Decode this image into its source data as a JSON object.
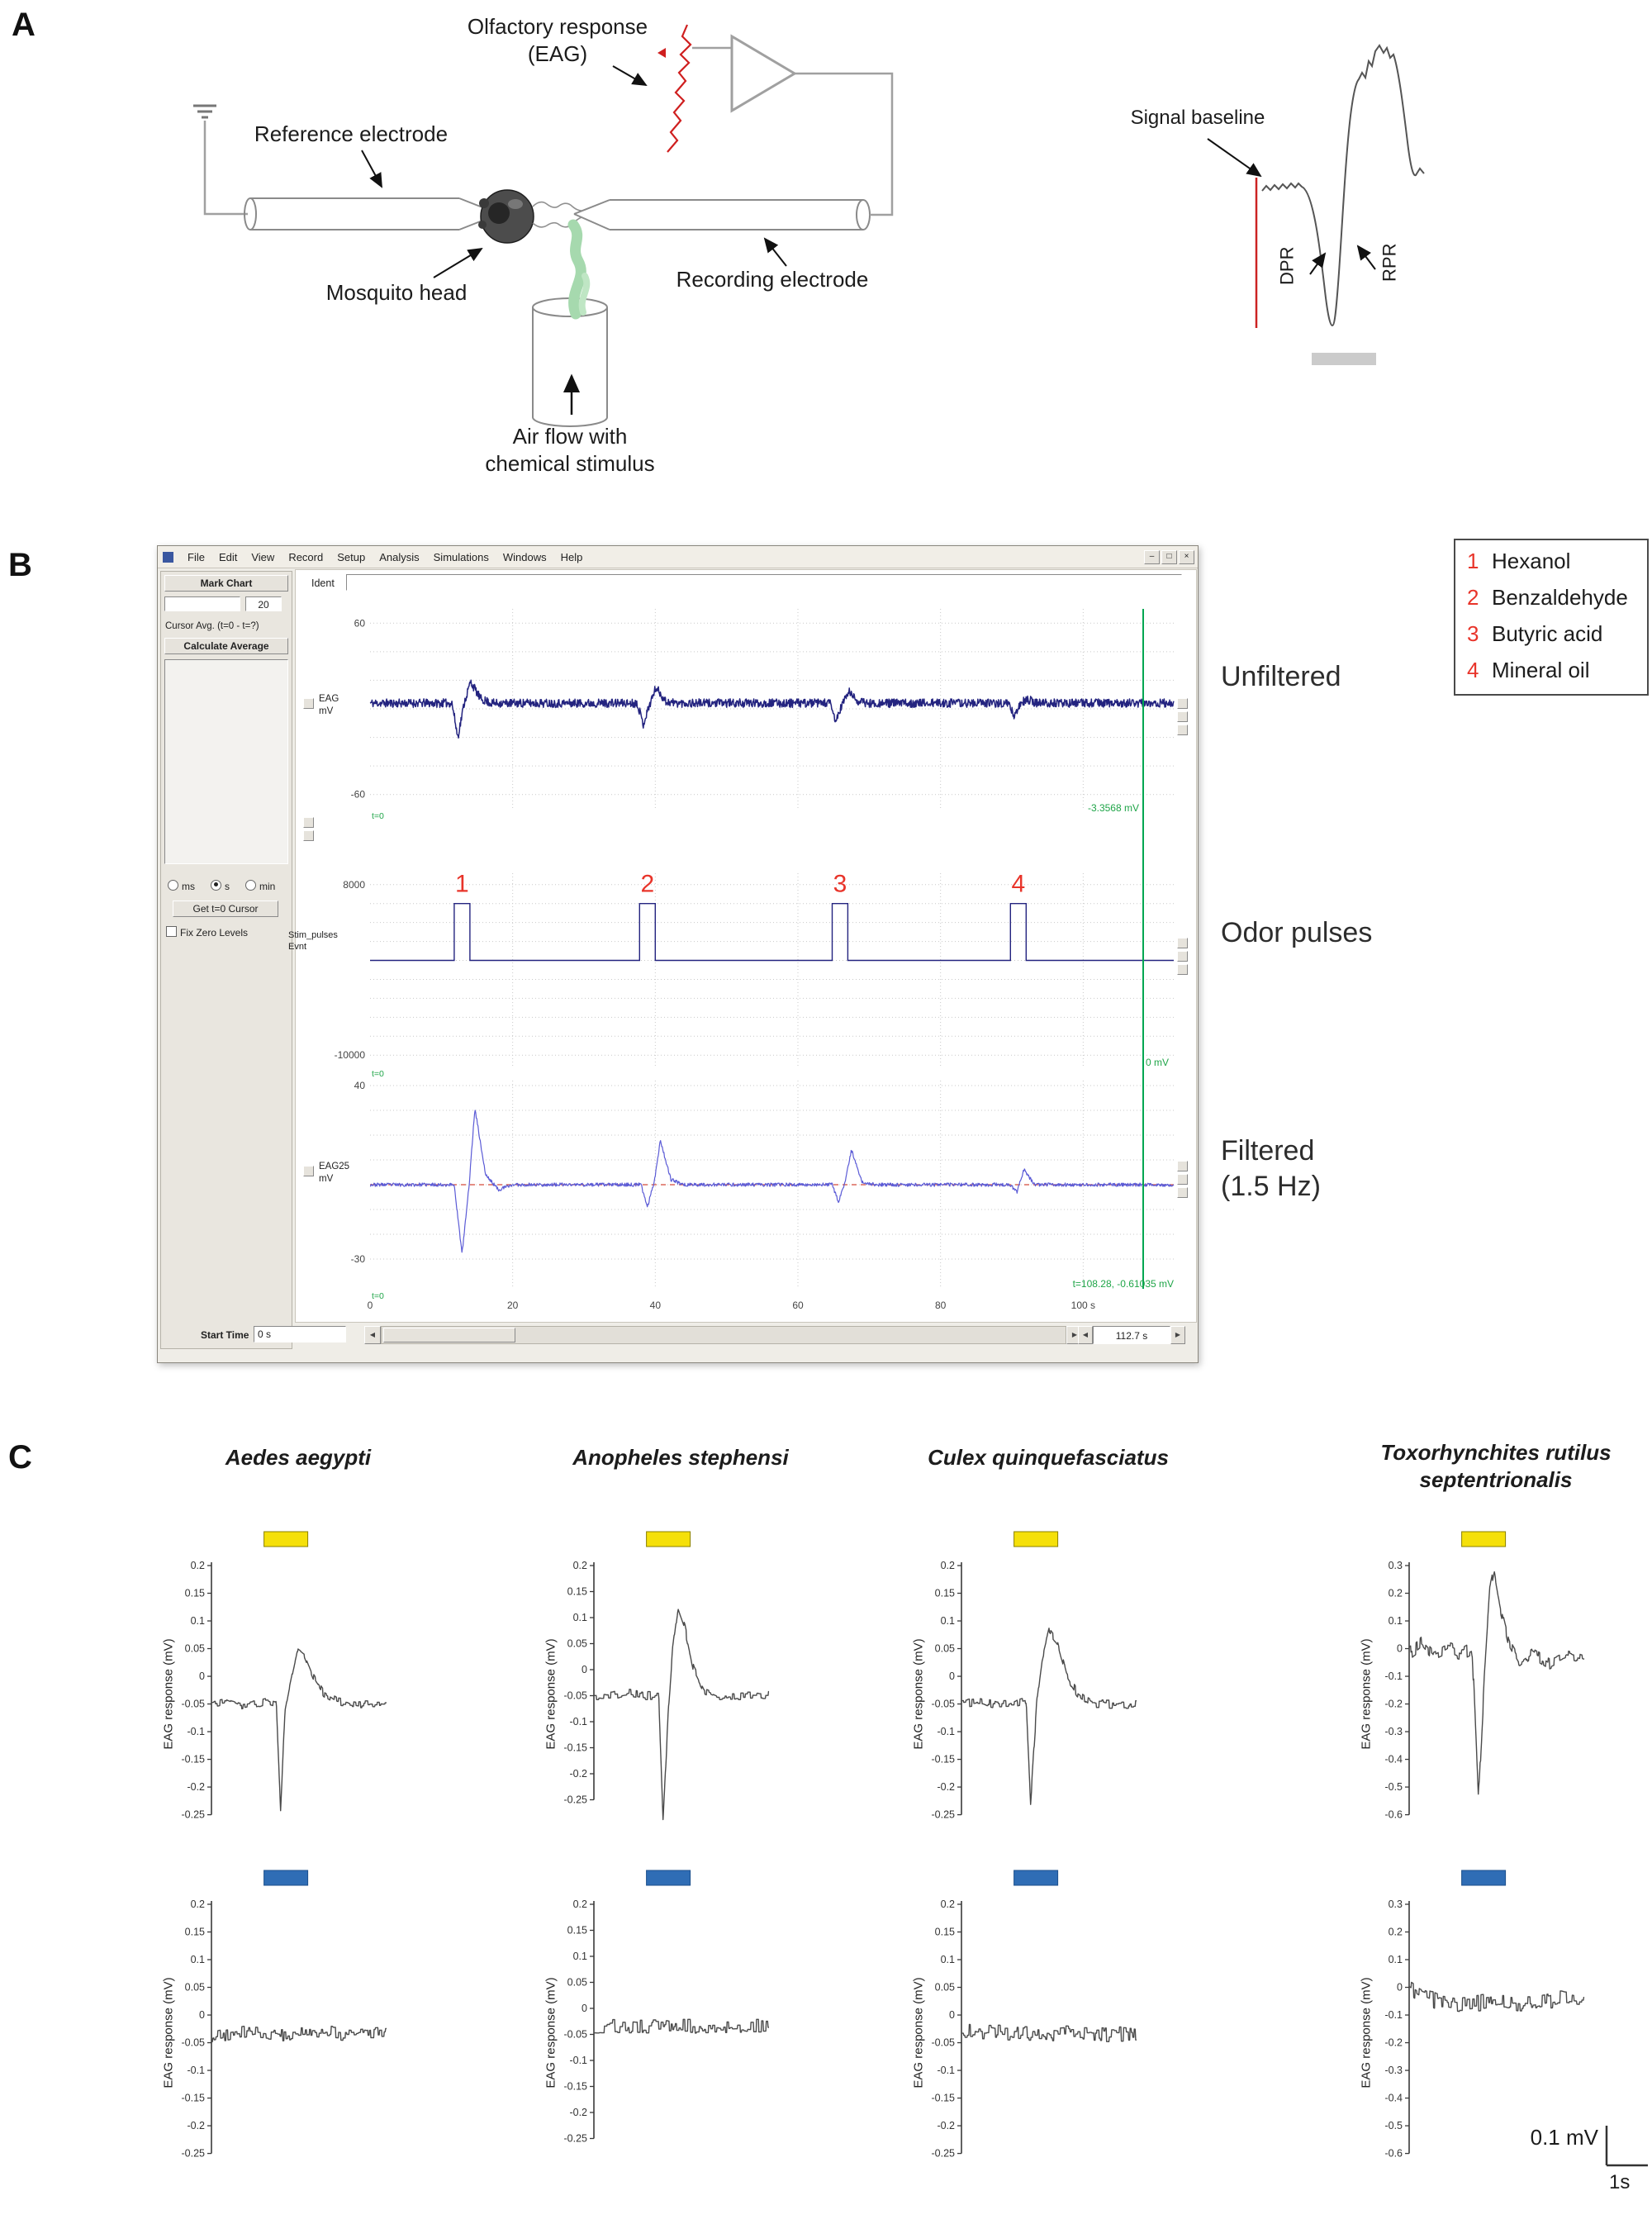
{
  "figure": {
    "panel_a_label": "A",
    "panel_b_label": "B",
    "panel_c_label": "C"
  },
  "panelA": {
    "olfactory_response": "Olfactory response\n(EAG)",
    "reference_electrode": "Reference electrode",
    "mosquito_head": "Mosquito head",
    "recording_electrode": "Recording electrode",
    "air_flow": "Air flow with\nchemical stimulus",
    "signal_baseline": "Signal baseline",
    "dpr": "DPR",
    "rpr": "RPR"
  },
  "panelB": {
    "window": {
      "menu": [
        "File",
        "Edit",
        "View",
        "Record",
        "Setup",
        "Analysis",
        "Simulations",
        "Windows",
        "Help"
      ],
      "window_buttons": {
        "minimize": "–",
        "restore": "□",
        "close": "×"
      },
      "sidebar": {
        "mark_chart": "Mark Chart",
        "mark_value": "20",
        "cursor_avg": "Cursor Avg. (t=0 - t=?)",
        "calculate_average": "Calculate Average",
        "unit_ms": "ms",
        "unit_s": "s",
        "unit_min": "min",
        "get_cursor": "Get t=0 Cursor",
        "fix_zero": "Fix Zero Levels"
      },
      "ident_label": "Ident",
      "channels": {
        "ch1": "EAG\nmV",
        "ch2": "Stim_pulses\nEvnt",
        "ch3": "EAG25\nmV"
      },
      "cursor": {
        "readout1": "-3.3568 mV",
        "readout2": "0 mV",
        "readout3": "t=108.28, -0.61035 mV",
        "t": 108.28
      },
      "start_time_label": "Start Time",
      "start_time_value": "0 s",
      "window_length": "112.7 s",
      "scroll_left": "◀",
      "scroll_right": "▶"
    },
    "annotations": {
      "unfiltered": "Unfiltered",
      "odor_pulses": "Odor pulses",
      "filtered": "Filtered\n(1.5 Hz)"
    },
    "legend": [
      {
        "num": "1",
        "name": "Hexanol"
      },
      {
        "num": "2",
        "name": "Benzaldehyde"
      },
      {
        "num": "3",
        "name": "Butyric acid"
      },
      {
        "num": "4",
        "name": "Mineral oil"
      }
    ]
  },
  "panelC": {
    "species": [
      "Aedes aegypti",
      "Anopheles stephensi",
      "Culex quinquefasciatus",
      "Toxorhynchites rutilus\nseptentrionalis"
    ],
    "scale_voltage": "0.1 mV",
    "scale_time": "1s"
  },
  "chart_data": [
    {
      "id": "b-unfiltered",
      "type": "line",
      "title": "Unfiltered EAG (mV)",
      "xlim": [
        0,
        112.7
      ],
      "ylim": [
        -70,
        70
      ],
      "grid_y": [
        -60,
        -40,
        -20,
        0,
        20,
        40,
        60
      ],
      "grid_x": [
        20,
        40,
        60,
        80,
        100
      ],
      "ytick_labels": [
        {
          "v": 60,
          "label": "60"
        },
        {
          "v": -60,
          "label": "-60"
        }
      ],
      "corner_label": "t=0",
      "color": "#23237f",
      "lw": 1.5,
      "noise": 3,
      "samples": 1600,
      "seed": 11,
      "keypoints": [
        [
          0,
          4
        ],
        [
          11.5,
          4
        ],
        [
          12.3,
          -20
        ],
        [
          13.2,
          4
        ],
        [
          14.1,
          19
        ],
        [
          15.5,
          7
        ],
        [
          17,
          4
        ],
        [
          37.5,
          4
        ],
        [
          38.3,
          -11
        ],
        [
          39.2,
          3
        ],
        [
          40.1,
          15
        ],
        [
          41.5,
          5
        ],
        [
          43,
          4
        ],
        [
          64.5,
          4
        ],
        [
          65.3,
          -9
        ],
        [
          66.2,
          3
        ],
        [
          67.1,
          12
        ],
        [
          68.5,
          5
        ],
        [
          70,
          4
        ],
        [
          89.5,
          4
        ],
        [
          90.3,
          -5
        ],
        [
          91.2,
          3
        ],
        [
          92,
          7
        ],
        [
          93.5,
          4
        ],
        [
          112.7,
          4
        ]
      ],
      "margin": {
        "l": 47,
        "t": 9,
        "r": 16,
        "b": 20
      }
    },
    {
      "id": "b-pulses",
      "type": "line",
      "title": "Odor stimulus pulses",
      "xlim": [
        0,
        112.7
      ],
      "ylim": [
        -11200,
        9200
      ],
      "grid_y": [
        -10000,
        -8000,
        -6000,
        -4000,
        -2000,
        0,
        2000,
        4000,
        6000,
        8000
      ],
      "grid_x": [
        20,
        40,
        60,
        80,
        100
      ],
      "ytick_labels": [
        {
          "v": 8000,
          "label": "8000"
        },
        {
          "v": -10000,
          "label": "-10000"
        }
      ],
      "corner_label": "t=0",
      "color": "#23237f",
      "lw": 1.4,
      "pulses": [
        {
          "t": 11.8,
          "w": 2.2,
          "label": "1"
        },
        {
          "t": 37.8,
          "w": 2.2,
          "label": "2"
        },
        {
          "t": 64.8,
          "w": 2.2,
          "label": "3"
        },
        {
          "t": 89.8,
          "w": 2.2,
          "label": "4"
        }
      ],
      "pulse_height": 6000,
      "margin": {
        "l": 47,
        "t": 8,
        "r": 16,
        "b": 20
      }
    },
    {
      "id": "b-filtered",
      "type": "line",
      "title": "Filtered EAG 1.5 Hz (mV)",
      "xlim": [
        0,
        112.7
      ],
      "ylim": [
        -42,
        42
      ],
      "grid_y": [
        -30,
        -20,
        -10,
        0,
        10,
        20,
        30,
        40
      ],
      "grid_x": [
        20,
        40,
        60,
        80,
        100
      ],
      "ytick_labels": [
        {
          "v": 40,
          "label": "40"
        },
        {
          "v": -30,
          "label": "-30"
        }
      ],
      "xticks": [
        {
          "v": 0,
          "label": "0"
        },
        {
          "v": 20,
          "label": "20"
        },
        {
          "v": 40,
          "label": "40"
        },
        {
          "v": 60,
          "label": "60"
        },
        {
          "v": 80,
          "label": "80"
        },
        {
          "v": 100,
          "label": "100 s"
        }
      ],
      "corner_label": "t=0",
      "baseline_line": {
        "y": 0,
        "color": "#d34a3a"
      },
      "color": "#5b5bd6",
      "lw": 1.2,
      "noise": 0.7,
      "samples": 1400,
      "seed": 23,
      "keypoints": [
        [
          0,
          0
        ],
        [
          11.8,
          0
        ],
        [
          12.9,
          -28
        ],
        [
          13.9,
          0
        ],
        [
          14.7,
          31
        ],
        [
          16.2,
          4
        ],
        [
          18,
          -2
        ],
        [
          20,
          0
        ],
        [
          38,
          0
        ],
        [
          38.9,
          -9
        ],
        [
          39.9,
          2
        ],
        [
          40.7,
          18
        ],
        [
          42.2,
          2
        ],
        [
          44,
          0
        ],
        [
          64.8,
          0
        ],
        [
          65.7,
          -7
        ],
        [
          66.7,
          2
        ],
        [
          67.5,
          14
        ],
        [
          69,
          1
        ],
        [
          71,
          0
        ],
        [
          89.8,
          0
        ],
        [
          90.7,
          -3
        ],
        [
          91.7,
          6
        ],
        [
          93.2,
          0
        ],
        [
          112.7,
          0
        ]
      ],
      "margin": {
        "l": 47,
        "t": 9,
        "r": 16,
        "b": 35
      }
    },
    {
      "id": "c-aedes-odor",
      "type": "line",
      "ylabel": "EAG response (mV)",
      "axis": "left",
      "xlim": [
        0,
        10
      ],
      "ylim": [
        -0.27,
        0.2
      ],
      "yticks": [
        0.2,
        0.15,
        0.1,
        0.05,
        0,
        -0.05,
        -0.1,
        -0.15,
        -0.2,
        -0.25
      ],
      "stim_bar": {
        "x0": 3.0,
        "x1": 5.5,
        "color": "#f5e00a",
        "stroke": "#8a8000"
      },
      "color": "#4a4a4a",
      "lw": 1.4,
      "noise": 0.007,
      "step": true,
      "samples": 380,
      "seed": 31,
      "keypoints": [
        [
          0,
          -0.05
        ],
        [
          0.8,
          -0.045
        ],
        [
          1.6,
          -0.055
        ],
        [
          2.4,
          -0.05
        ],
        [
          3.2,
          -0.045
        ],
        [
          3.7,
          -0.05
        ],
        [
          3.95,
          -0.25
        ],
        [
          4.2,
          -0.06
        ],
        [
          4.5,
          -0.01
        ],
        [
          4.9,
          0.05
        ],
        [
          5.3,
          0.04
        ],
        [
          5.8,
          0.0
        ],
        [
          6.4,
          -0.03
        ],
        [
          7.2,
          -0.045
        ],
        [
          8.5,
          -0.05
        ],
        [
          10,
          -0.05
        ]
      ],
      "margin": {
        "l": 60,
        "t": 55,
        "r": 18,
        "b": 10
      }
    },
    {
      "id": "c-anopheles-odor",
      "type": "line",
      "ylabel": "EAG response (mV)",
      "axis": "left",
      "xlim": [
        0,
        10
      ],
      "ylim": [
        -0.3,
        0.2
      ],
      "yticks": [
        0.2,
        0.15,
        0.1,
        0.05,
        0,
        -0.05,
        -0.1,
        -0.15,
        -0.2,
        -0.25
      ],
      "stim_bar": {
        "x0": 3.0,
        "x1": 5.5,
        "color": "#f5e00a",
        "stroke": "#8a8000"
      },
      "color": "#4a4a4a",
      "lw": 1.4,
      "noise": 0.008,
      "step": true,
      "samples": 380,
      "seed": 37,
      "keypoints": [
        [
          0,
          -0.05
        ],
        [
          1,
          -0.05
        ],
        [
          2,
          -0.045
        ],
        [
          3,
          -0.05
        ],
        [
          3.7,
          -0.05
        ],
        [
          3.95,
          -0.29
        ],
        [
          4.25,
          -0.08
        ],
        [
          4.5,
          0.04
        ],
        [
          4.8,
          0.12
        ],
        [
          5.2,
          0.08
        ],
        [
          5.7,
          0.0
        ],
        [
          6.3,
          -0.04
        ],
        [
          7,
          -0.05
        ],
        [
          10,
          -0.05
        ]
      ],
      "margin": {
        "l": 60,
        "t": 55,
        "r": 18,
        "b": 10
      }
    },
    {
      "id": "c-culex-odor",
      "type": "line",
      "ylabel": "EAG response (mV)",
      "axis": "left",
      "xlim": [
        0,
        10
      ],
      "ylim": [
        -0.27,
        0.2
      ],
      "yticks": [
        0.2,
        0.15,
        0.1,
        0.05,
        0,
        -0.05,
        -0.1,
        -0.15,
        -0.2,
        -0.25
      ],
      "stim_bar": {
        "x0": 3.0,
        "x1": 5.5,
        "color": "#f5e00a",
        "stroke": "#8a8000"
      },
      "color": "#4a4a4a",
      "lw": 1.4,
      "noise": 0.008,
      "step": true,
      "samples": 380,
      "seed": 41,
      "keypoints": [
        [
          0,
          -0.05
        ],
        [
          1,
          -0.045
        ],
        [
          2,
          -0.05
        ],
        [
          3,
          -0.05
        ],
        [
          3.7,
          -0.045
        ],
        [
          3.95,
          -0.23
        ],
        [
          4.3,
          -0.05
        ],
        [
          4.6,
          0.03
        ],
        [
          5.0,
          0.08
        ],
        [
          5.5,
          0.06
        ],
        [
          6.0,
          0.0
        ],
        [
          6.6,
          -0.03
        ],
        [
          7.4,
          -0.05
        ],
        [
          10,
          -0.05
        ]
      ],
      "margin": {
        "l": 60,
        "t": 55,
        "r": 18,
        "b": 10
      }
    },
    {
      "id": "c-toxo-odor",
      "type": "line",
      "ylabel": "EAG response (mV)",
      "axis": "left",
      "xlim": [
        0,
        10
      ],
      "ylim": [
        -0.64,
        0.3
      ],
      "yticks": [
        0.3,
        0.2,
        0.1,
        0,
        -0.1,
        -0.2,
        -0.3,
        -0.4,
        -0.5,
        -0.6
      ],
      "stim_bar": {
        "x0": 3.0,
        "x1": 5.5,
        "color": "#f5e00a",
        "stroke": "#8a8000"
      },
      "color": "#4a4a4a",
      "lw": 1.4,
      "noise": 0.025,
      "step": true,
      "samples": 380,
      "seed": 43,
      "keypoints": [
        [
          0,
          -0.02
        ],
        [
          0.7,
          0.02
        ],
        [
          1.4,
          -0.03
        ],
        [
          2.2,
          0.0
        ],
        [
          3,
          -0.02
        ],
        [
          3.6,
          0.0
        ],
        [
          3.95,
          -0.55
        ],
        [
          4.3,
          -0.1
        ],
        [
          4.6,
          0.2
        ],
        [
          4.85,
          0.28
        ],
        [
          5.2,
          0.15
        ],
        [
          5.7,
          0.02
        ],
        [
          6.3,
          -0.05
        ],
        [
          7,
          -0.02
        ],
        [
          8,
          -0.06
        ],
        [
          9,
          -0.03
        ],
        [
          10,
          -0.05
        ]
      ],
      "margin": {
        "l": 60,
        "t": 55,
        "r": 18,
        "b": 10
      }
    },
    {
      "id": "c-aedes-control",
      "type": "line",
      "ylabel": "EAG response (mV)",
      "axis": "left",
      "xlim": [
        0,
        10
      ],
      "ylim": [
        -0.27,
        0.2
      ],
      "yticks": [
        0.2,
        0.15,
        0.1,
        0.05,
        0,
        -0.05,
        -0.1,
        -0.15,
        -0.2,
        -0.25
      ],
      "stim_bar": {
        "x0": 3.0,
        "x1": 5.5,
        "color": "#2f6db5",
        "stroke": "#1c4f8c"
      },
      "color": "#4a4a4a",
      "lw": 1.4,
      "noise": 0.012,
      "step": true,
      "samples": 380,
      "seed": 51,
      "keypoints": [
        [
          0,
          -0.04
        ],
        [
          2,
          -0.03
        ],
        [
          4,
          -0.035
        ],
        [
          6,
          -0.03
        ],
        [
          8,
          -0.035
        ],
        [
          10,
          -0.03
        ]
      ],
      "margin": {
        "l": 60,
        "t": 55,
        "r": 18,
        "b": 10
      }
    },
    {
      "id": "c-anopheles-control",
      "type": "line",
      "ylabel": "EAG response (mV)",
      "axis": "left",
      "xlim": [
        0,
        10
      ],
      "ylim": [
        -0.3,
        0.2
      ],
      "yticks": [
        0.2,
        0.15,
        0.1,
        0.05,
        0,
        -0.05,
        -0.1,
        -0.15,
        -0.2,
        -0.25
      ],
      "stim_bar": {
        "x0": 3.0,
        "x1": 5.5,
        "color": "#2f6db5",
        "stroke": "#1c4f8c"
      },
      "color": "#4a4a4a",
      "lw": 1.4,
      "noise": 0.014,
      "step": true,
      "samples": 380,
      "seed": 53,
      "keypoints": [
        [
          0,
          -0.035
        ],
        [
          10,
          -0.035
        ]
      ],
      "margin": {
        "l": 60,
        "t": 55,
        "r": 18,
        "b": 10
      }
    },
    {
      "id": "c-culex-control",
      "type": "line",
      "ylabel": "EAG response (mV)",
      "axis": "left",
      "xlim": [
        0,
        10
      ],
      "ylim": [
        -0.27,
        0.2
      ],
      "yticks": [
        0.2,
        0.15,
        0.1,
        0.05,
        0,
        -0.05,
        -0.1,
        -0.15,
        -0.2,
        -0.25
      ],
      "stim_bar": {
        "x0": 3.0,
        "x1": 5.5,
        "color": "#2f6db5",
        "stroke": "#1c4f8c"
      },
      "color": "#4a4a4a",
      "lw": 1.4,
      "noise": 0.014,
      "step": true,
      "samples": 380,
      "seed": 59,
      "keypoints": [
        [
          0,
          -0.03
        ],
        [
          10,
          -0.035
        ]
      ],
      "margin": {
        "l": 60,
        "t": 55,
        "r": 18,
        "b": 10
      }
    },
    {
      "id": "c-toxo-control",
      "type": "line",
      "ylabel": "EAG response (mV)",
      "axis": "left",
      "xlim": [
        0,
        10
      ],
      "ylim": [
        -0.64,
        0.3
      ],
      "yticks": [
        0.3,
        0.2,
        0.1,
        0,
        -0.1,
        -0.2,
        -0.3,
        -0.4,
        -0.5,
        -0.6
      ],
      "stim_bar": {
        "x0": 3.0,
        "x1": 5.5,
        "color": "#2f6db5",
        "stroke": "#1c4f8c"
      },
      "color": "#4a4a4a",
      "lw": 1.4,
      "noise": 0.03,
      "step": true,
      "samples": 380,
      "seed": 61,
      "keypoints": [
        [
          0,
          0.0
        ],
        [
          0.8,
          -0.03
        ],
        [
          1.6,
          -0.05
        ],
        [
          3,
          -0.06
        ],
        [
          5,
          -0.05
        ],
        [
          7,
          -0.06
        ],
        [
          8.5,
          -0.04
        ],
        [
          10,
          -0.05
        ]
      ],
      "margin": {
        "l": 60,
        "t": 55,
        "r": 18,
        "b": 10
      }
    }
  ]
}
